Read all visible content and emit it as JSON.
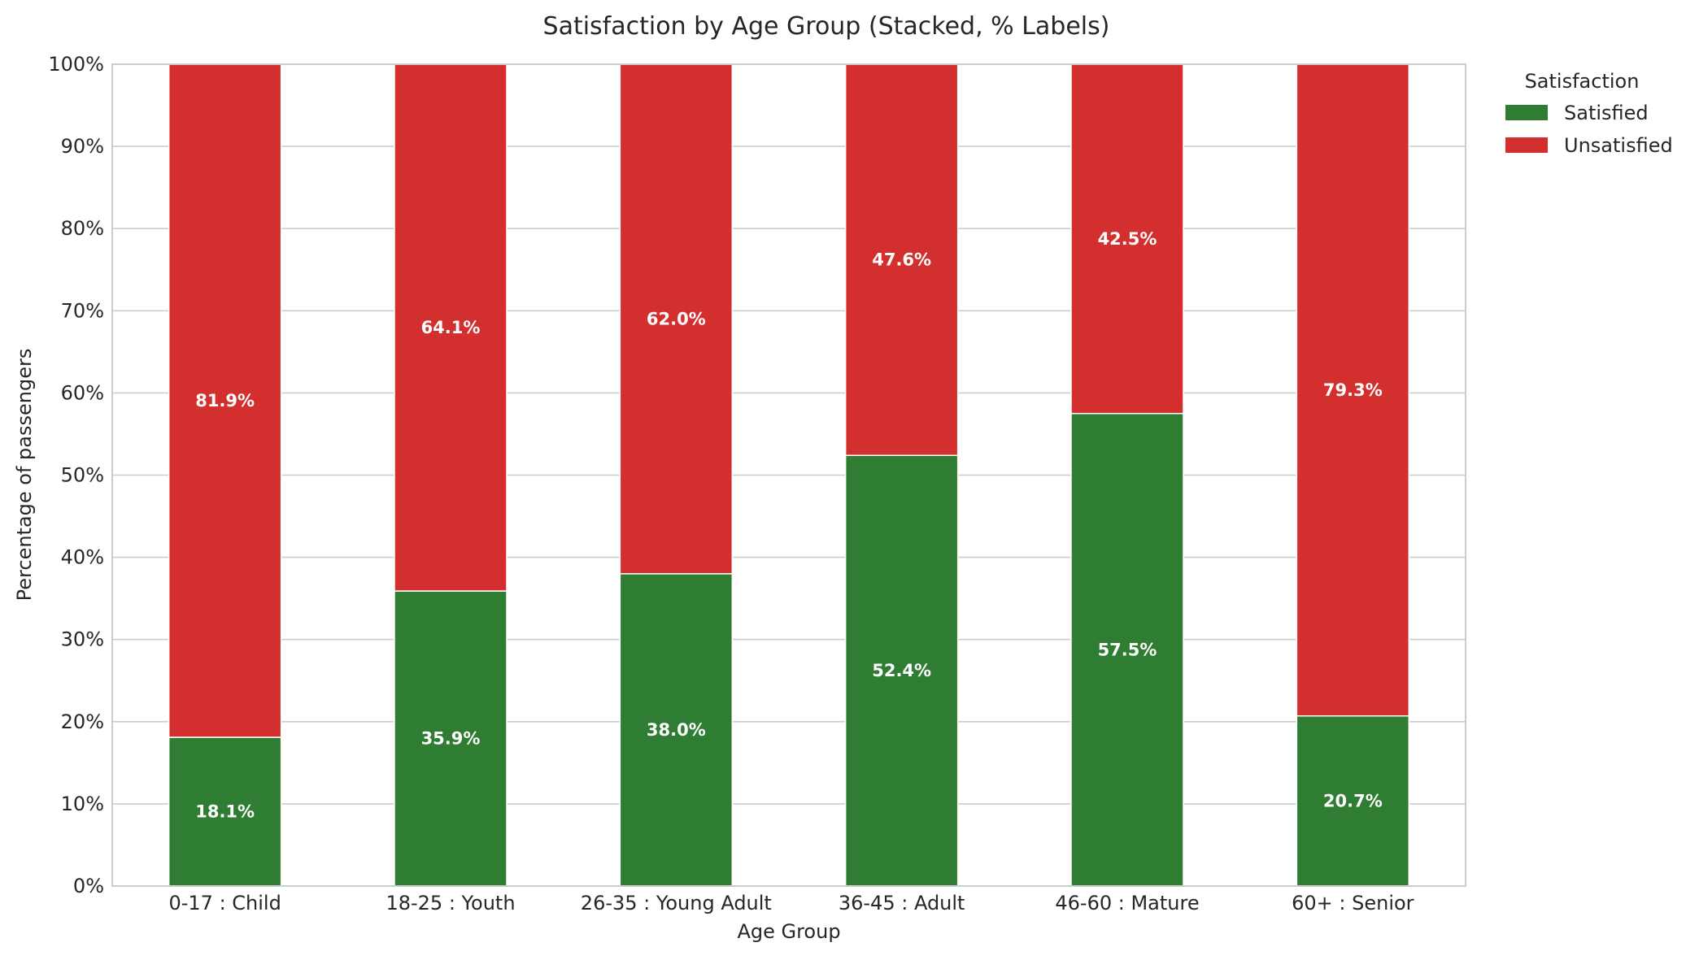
{
  "chart_data": {
    "type": "bar",
    "stacked": true,
    "title": "Satisfaction by Age Group (Stacked, % Labels)",
    "xlabel": "Age Group",
    "ylabel": "Percentage of passengers",
    "categories": [
      "0-17 : Child",
      "18-25 : Youth",
      "26-35 : Young Adult",
      "36-45 : Adult",
      "46-60 : Mature",
      "60+ : Senior"
    ],
    "series": [
      {
        "name": "Satisfied",
        "color": "#2e7d32",
        "values": [
          18.1,
          35.9,
          38.0,
          52.4,
          57.5,
          20.7
        ]
      },
      {
        "name": "Unsatisfied",
        "color": "#d32f2f",
        "values": [
          81.9,
          64.1,
          62.0,
          47.6,
          42.5,
          79.3
        ]
      }
    ],
    "ylim": [
      0,
      100
    ],
    "yticks": [
      0,
      10,
      20,
      30,
      40,
      50,
      60,
      70,
      80,
      90,
      100
    ],
    "ytick_labels": [
      "0%",
      "10%",
      "20%",
      "30%",
      "40%",
      "50%",
      "60%",
      "70%",
      "80%",
      "90%",
      "100%"
    ],
    "data_labels": {
      "Satisfied": [
        "18.1%",
        "35.9%",
        "38.0%",
        "52.4%",
        "57.5%",
        "20.7%"
      ],
      "Unsatisfied": [
        "81.9%",
        "64.1%",
        "62.0%",
        "47.6%",
        "42.5%",
        "79.3%"
      ]
    },
    "legend": {
      "title": "Satisfaction",
      "placement": "outside-top-right"
    },
    "grid": true
  }
}
